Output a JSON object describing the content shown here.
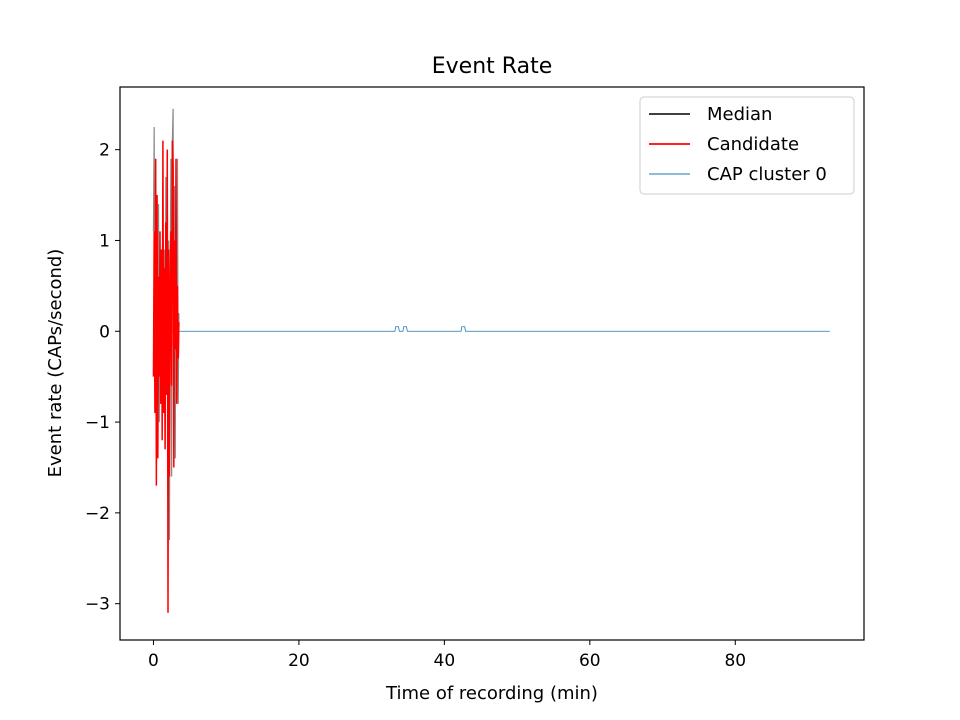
{
  "chart_data": {
    "type": "line",
    "title": "Event Rate",
    "xlabel": "Time of recording (min)",
    "ylabel": "Event rate (CAPs/second)",
    "xlim": [
      -4.6,
      97.7
    ],
    "ylim": [
      -3.4,
      2.69
    ],
    "xticks": [
      0,
      20,
      40,
      60,
      80
    ],
    "yticks": [
      -3,
      -2,
      -1,
      0,
      1,
      2
    ],
    "grid": false,
    "legend_position": "top-right",
    "series": [
      {
        "name": "Median",
        "color": "#888888",
        "x": [
          0,
          0.1,
          0.2,
          0.3,
          0.4,
          0.5,
          0.6,
          0.7,
          0.8,
          0.9,
          1.0,
          1.1,
          1.2,
          1.3,
          1.4,
          1.5,
          1.6,
          1.7,
          1.8,
          1.9,
          2.0,
          2.1,
          2.2,
          2.3,
          2.4,
          2.5,
          2.6,
          2.7,
          2.8,
          2.9,
          3.0,
          3.1,
          3.2,
          3.3,
          3.4,
          3.5
        ],
        "y": [
          1.1,
          2.25,
          -0.3,
          1.9,
          -1.2,
          0.9,
          -0.7,
          1.4,
          -1.0,
          0.5,
          -0.4,
          0.8,
          -0.9,
          1.3,
          -0.8,
          0.9,
          -1.3,
          1.7,
          -0.6,
          2.0,
          -1.5,
          1.0,
          -2.3,
          0.6,
          1.9,
          -1.6,
          2.1,
          2.45,
          -0.2,
          1.6,
          -1.4,
          1.2,
          -0.3,
          1.9,
          -0.8,
          0.2
        ]
      },
      {
        "name": "Candidate",
        "color": "#ff0000",
        "x": [
          0,
          0.1,
          0.2,
          0.3,
          0.4,
          0.5,
          0.6,
          0.7,
          0.8,
          0.9,
          1.0,
          1.1,
          1.2,
          1.3,
          1.4,
          1.5,
          1.6,
          1.7,
          1.8,
          1.9,
          2.0,
          2.1,
          2.2,
          2.3,
          2.4,
          2.5,
          2.6,
          2.7,
          2.8,
          2.9,
          3.0,
          3.1,
          3.2,
          3.3,
          3.4,
          3.5
        ],
        "y": [
          -0.5,
          1.1,
          -0.9,
          1.9,
          -1.7,
          1.5,
          -1.4,
          0.6,
          -0.5,
          1.1,
          -0.8,
          0.9,
          -1.2,
          2.1,
          -0.9,
          0.7,
          -1.3,
          1.2,
          -0.7,
          2.0,
          -3.1,
          0.9,
          -1.6,
          0.4,
          1.1,
          -0.6,
          2.1,
          1.8,
          -1.5,
          1.0,
          -0.2,
          1.9,
          -0.8,
          0.5,
          -0.3,
          0.1
        ]
      },
      {
        "name": "CAP cluster 0",
        "color": "#1f77b4",
        "x": [
          0,
          33.2,
          33.3,
          33.7,
          33.8,
          34.3,
          34.4,
          34.8,
          34.9,
          42.3,
          42.4,
          42.8,
          42.9,
          93
        ],
        "y": [
          0,
          0,
          0.05,
          0.05,
          0,
          0,
          0.05,
          0.05,
          0,
          0,
          0.05,
          0.05,
          0,
          0
        ]
      }
    ]
  }
}
